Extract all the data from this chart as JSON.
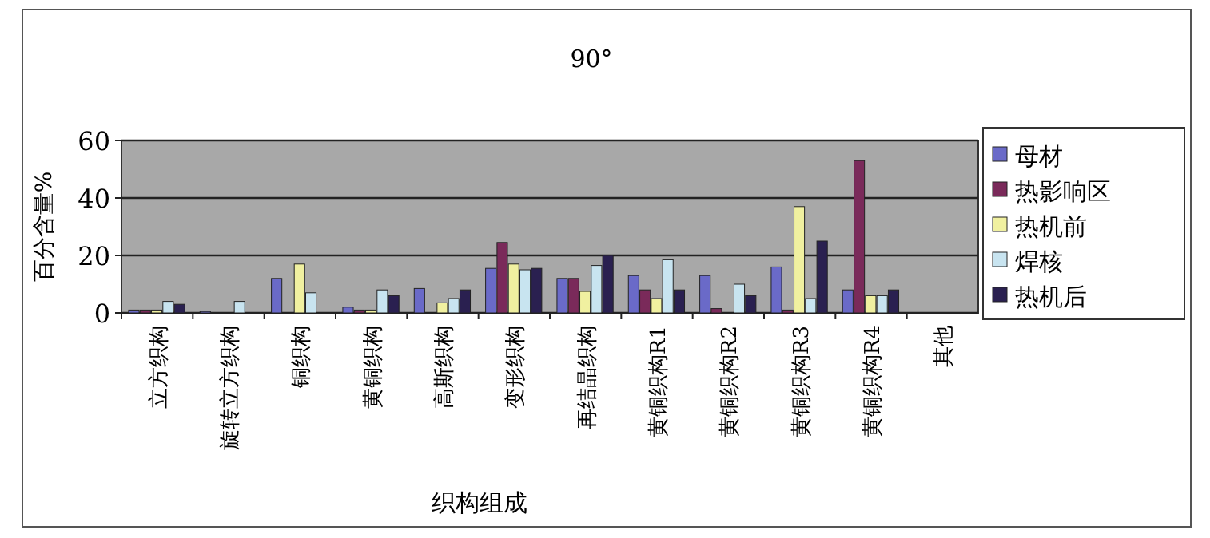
{
  "chart_data": {
    "type": "bar",
    "title": "90°",
    "xlabel": "织构组成",
    "ylabel": "百分含量%",
    "categories": [
      "立方织构",
      "旋转立方织构",
      "铜织构",
      "黄铜织构",
      "高斯织构",
      "变形织构",
      "再结晶织构",
      "黄铜织构R1",
      "黄铜织构R2",
      "黄铜织构R3",
      "黄铜织构R4",
      "其他"
    ],
    "series": [
      {
        "name": "母材",
        "color": "#6a6ac8",
        "values": [
          1,
          0.5,
          12,
          2,
          8.5,
          15.5,
          12,
          13,
          13,
          16,
          8,
          0
        ]
      },
      {
        "name": "热影响区",
        "color": "#7a2a5a",
        "values": [
          1,
          0,
          0,
          1,
          0,
          24.5,
          12,
          8,
          1.5,
          1,
          53,
          0
        ]
      },
      {
        "name": "热机前",
        "color": "#f0f0a0",
        "values": [
          1,
          0,
          17,
          1,
          3.5,
          17,
          7.5,
          5,
          0,
          37,
          6,
          0
        ]
      },
      {
        "name": "焊核",
        "color": "#c8e4f0",
        "values": [
          4,
          4,
          7,
          8,
          5,
          15,
          16.5,
          18.5,
          10,
          5,
          6,
          0
        ]
      },
      {
        "name": "热机后",
        "color": "#2a2050",
        "values": [
          3,
          0,
          null,
          6,
          8,
          15.5,
          20,
          8,
          6,
          25,
          8,
          0
        ]
      }
    ],
    "ylim": [
      0,
      60
    ],
    "yticks": [
      0,
      20,
      40,
      60
    ],
    "grid": "y",
    "legend": "right"
  }
}
